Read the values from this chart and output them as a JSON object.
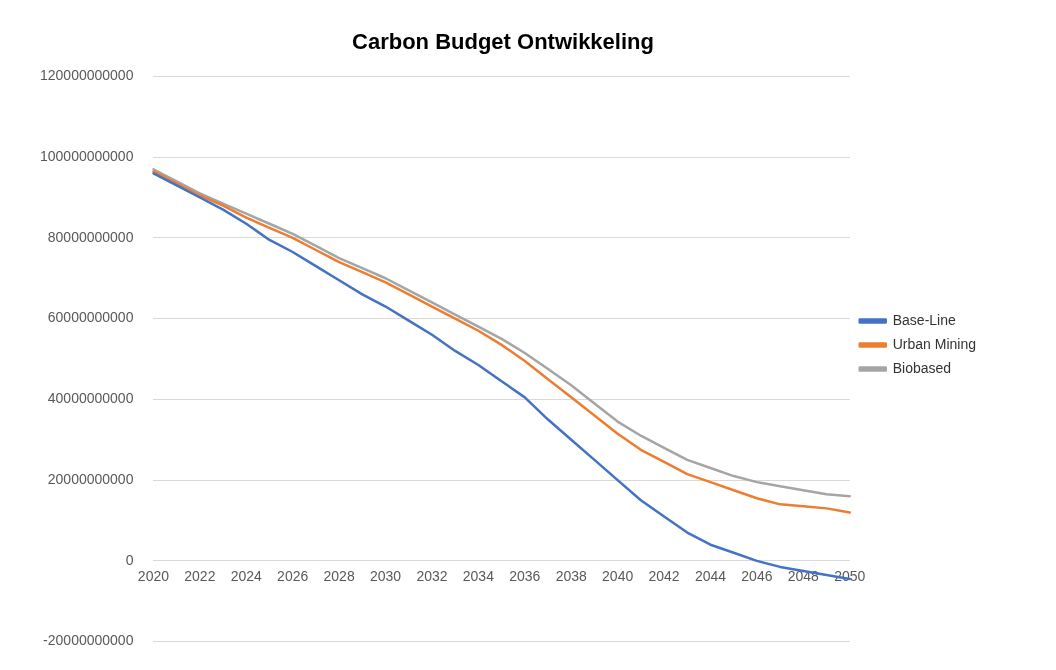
{
  "chart_data": {
    "type": "line",
    "title": "Carbon Budget Ontwikkeling",
    "categories": [
      "2020",
      null,
      "2022",
      null,
      "2024",
      null,
      "2026",
      null,
      "2028",
      null,
      "2030",
      null,
      "2032",
      null,
      "2034",
      null,
      "2036",
      null,
      "2038",
      null,
      "2040",
      null,
      "2042",
      null,
      "2044",
      null,
      "2046",
      null,
      "2048",
      null,
      "2050"
    ],
    "series": [
      {
        "name": "Base-Line",
        "color": "#4472c4",
        "values": [
          96000000000,
          93000000000,
          90000000000,
          87000000000,
          83500000000,
          79500000000,
          76500000000,
          73000000000,
          69500000000,
          66000000000,
          63000000000,
          59500000000,
          56000000000,
          52000000000,
          48500000000,
          44500000000,
          40500000000,
          35000000000,
          30000000000,
          25000000000,
          20000000000,
          15000000000,
          11000000000,
          7000000000,
          4000000000,
          2000000000,
          0,
          -1500000000,
          -2500000000,
          -3500000000,
          -4500000000
        ]
      },
      {
        "name": "Urban Mining",
        "color": "#ed7d31",
        "values": [
          96500000000,
          93500000000,
          90500000000,
          88000000000,
          85000000000,
          82500000000,
          80000000000,
          77000000000,
          74000000000,
          71500000000,
          69000000000,
          66000000000,
          63000000000,
          60000000000,
          57000000000,
          53500000000,
          49500000000,
          45000000000,
          40500000000,
          36000000000,
          31500000000,
          27500000000,
          24500000000,
          21500000000,
          19500000000,
          17500000000,
          15500000000,
          14000000000,
          13500000000,
          13000000000,
          12000000000
        ]
      },
      {
        "name": "Biobased",
        "color": "#a5a5a5",
        "values": [
          97000000000,
          94000000000,
          91000000000,
          88500000000,
          86000000000,
          83500000000,
          81000000000,
          78000000000,
          75000000000,
          72500000000,
          70000000000,
          67000000000,
          64000000000,
          61000000000,
          58000000000,
          55000000000,
          51500000000,
          47500000000,
          43500000000,
          39000000000,
          34500000000,
          31000000000,
          28000000000,
          25000000000,
          23000000000,
          21000000000,
          19500000000,
          18500000000,
          17500000000,
          16500000000,
          16000000000
        ]
      }
    ],
    "ylim": [
      -20000000000,
      120000000000
    ],
    "yticks": [
      -20000000000,
      0,
      20000000000,
      40000000000,
      60000000000,
      80000000000,
      100000000000,
      120000000000
    ],
    "grid": "y",
    "legend": "right",
    "marker": "none",
    "line_style": "solid"
  }
}
